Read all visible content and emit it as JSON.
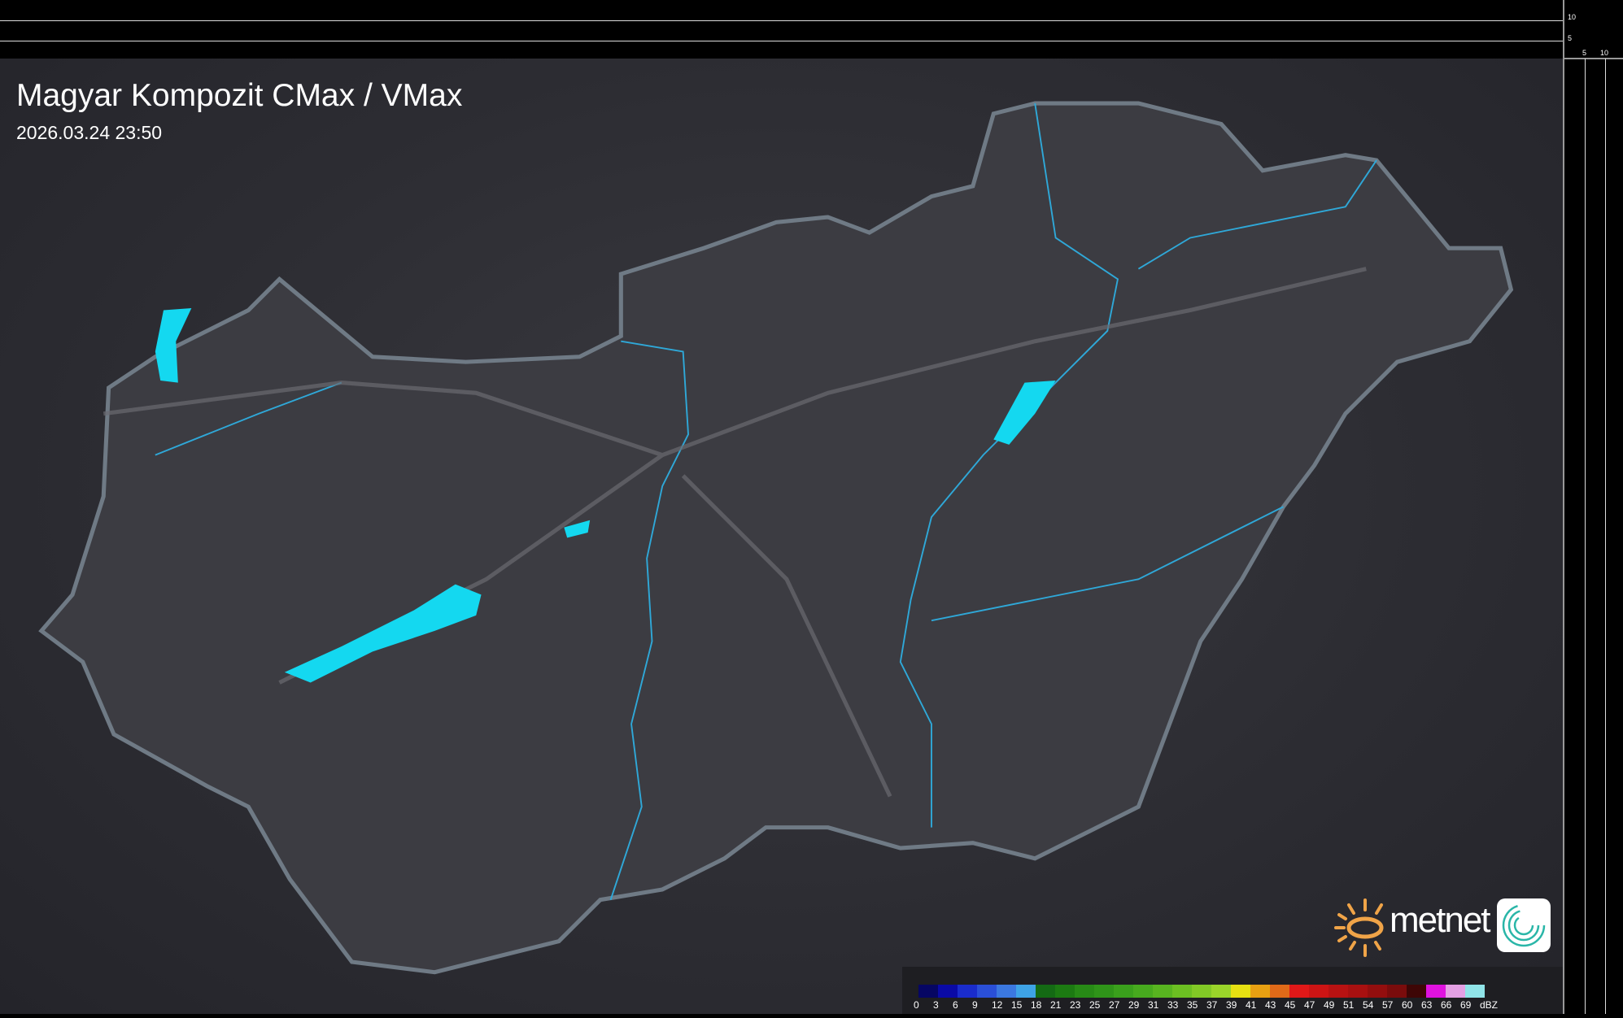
{
  "header": {
    "title": "Magyar Kompozit CMax / VMax",
    "timestamp": "2026.03.24 23:50"
  },
  "profile_axes": {
    "right_ticks": [
      "10",
      "5"
    ],
    "bottom_ticks": [
      "5",
      "10"
    ]
  },
  "legend": {
    "unit": "dBZ",
    "labels": [
      "0",
      "3",
      "6",
      "9",
      "12",
      "15",
      "18",
      "21",
      "23",
      "25",
      "27",
      "29",
      "31",
      "33",
      "35",
      "37",
      "39",
      "41",
      "43",
      "45",
      "47",
      "49",
      "51",
      "54",
      "57",
      "60",
      "63",
      "66",
      "69"
    ],
    "colors": [
      "#060663",
      "#0a0aa6",
      "#1a2ccc",
      "#2a4fd8",
      "#3b78e0",
      "#3ea3e6",
      "#146a14",
      "#1c7a12",
      "#278a16",
      "#2f9419",
      "#3aa01c",
      "#47aa1e",
      "#58b420",
      "#6cbf22",
      "#82c926",
      "#9ad42a",
      "#e6e012",
      "#e8a012",
      "#e06a18",
      "#e01818",
      "#cc1414",
      "#b81212",
      "#a81010",
      "#930e0e",
      "#7a0c0c",
      "#3e0606",
      "#e012e0",
      "#e4a0e4",
      "#90e4e8"
    ]
  },
  "logo": {
    "brand": "metnet",
    "accent": "#f0a448"
  },
  "map": {
    "country_fill": "#3c3c42",
    "border_color": "#6f7a85",
    "river_color": "#2fa8d8",
    "lake_color": "#14d8f0"
  }
}
